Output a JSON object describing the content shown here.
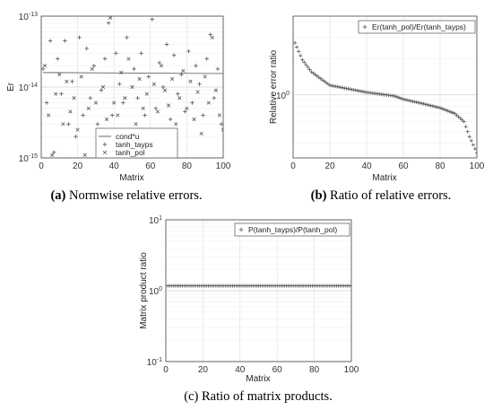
{
  "chart_data": [
    {
      "id": "a",
      "type": "scatter",
      "caption_letter": "(a)",
      "caption_text": " Normwise relative errors.",
      "xlabel": "Matrix",
      "ylabel": "Er",
      "xlim": [
        0,
        100
      ],
      "ylim": [
        1e-15,
        1e-13
      ],
      "yscale": "log",
      "x_ticks": [
        "0",
        "20",
        "40",
        "60",
        "80",
        "100"
      ],
      "y_ticks": [
        "10",
        "10",
        "10"
      ],
      "y_tick_exponents": [
        "-15",
        "-14",
        "-13"
      ],
      "grid": true,
      "legend": "bottom-center",
      "series": [
        {
          "name": "cond*u",
          "style": "line",
          "start": [
            1,
            1.6e-14
          ],
          "end": [
            100,
            1.55e-14
          ]
        },
        {
          "name": "tanh_tayps",
          "marker": "+",
          "x": [
            1,
            3,
            5,
            7,
            9,
            11,
            13,
            15,
            17,
            19,
            21,
            23,
            25,
            27,
            29,
            31,
            33,
            35,
            37,
            39,
            41,
            43,
            45,
            47,
            49,
            51,
            53,
            55,
            57,
            59,
            61,
            63,
            65,
            67,
            69,
            71,
            73,
            75,
            77,
            79,
            81,
            83,
            85,
            87,
            89,
            91,
            93,
            95,
            97,
            99
          ],
          "y": [
            1.8e-14,
            6e-15,
            4.5e-14,
            1.2e-15,
            2.5e-14,
            8e-15,
            4.5e-14,
            3e-15,
            1.2e-14,
            2e-15,
            5e-14,
            4e-15,
            3.5e-14,
            7e-15,
            2e-14,
            3e-15,
            9e-15,
            2.5e-14,
            8e-14,
            4e-15,
            3e-14,
            1.1e-14,
            6e-15,
            5e-14,
            2.2e-15,
            1.8e-14,
            7e-15,
            3e-14,
            4e-15,
            1.4e-14,
            9e-14,
            5e-15,
            2.2e-14,
            1e-14,
            4e-14,
            3.5e-15,
            2.8e-14,
            8e-15,
            1.5e-14,
            4.5e-15,
            3.2e-14,
            6e-15,
            2e-14,
            1.1e-14,
            4e-15,
            2.5e-14,
            5.5e-14,
            7e-15,
            1.8e-14,
            3e-15
          ]
        },
        {
          "name": "tanh_pol",
          "marker": "x",
          "x": [
            2,
            4,
            6,
            8,
            10,
            12,
            14,
            16,
            18,
            20,
            22,
            24,
            26,
            28,
            30,
            32,
            34,
            36,
            38,
            40,
            42,
            44,
            46,
            48,
            50,
            52,
            54,
            56,
            58,
            60,
            62,
            64,
            66,
            68,
            70,
            72,
            74,
            76,
            78,
            80,
            82,
            84,
            86,
            88,
            90,
            92,
            94,
            96,
            98,
            100
          ],
          "y": [
            2e-14,
            4e-15,
            1.1e-15,
            8e-15,
            1.5e-14,
            3e-15,
            1.2e-14,
            4.5e-15,
            7e-15,
            2.5e-15,
            1.4e-14,
            1.1e-15,
            5e-15,
            1.8e-14,
            6e-15,
            2.2e-15,
            1e-14,
            3.5e-15,
            9.5e-14,
            6e-15,
            4e-15,
            1.6e-14,
            7e-15,
            2.5e-14,
            1e-14,
            3e-15,
            1.3e-14,
            5e-15,
            8e-15,
            2e-15,
            1.1e-14,
            4.5e-15,
            2e-14,
            9e-15,
            5.5e-15,
            1.3e-14,
            3e-15,
            7e-15,
            1.7e-14,
            5e-15,
            1.2e-14,
            3.5e-15,
            8.5e-15,
            2.2e-15,
            1.4e-14,
            6e-15,
            5e-14,
            9e-15,
            4e-15,
            2.5e-15
          ]
        }
      ]
    },
    {
      "id": "b",
      "type": "scatter",
      "caption_letter": "(b)",
      "caption_text": " Ratio of relative errors.",
      "xlabel": "Matrix",
      "ylabel": "Relative error ratio",
      "xlim": [
        0,
        100
      ],
      "yscale": "log",
      "x_ticks": [
        "0",
        "20",
        "40",
        "60",
        "80",
        "100"
      ],
      "y_ticks": [
        "10"
      ],
      "y_tick_exponents": [
        "0"
      ],
      "grid": true,
      "legend": "top-right",
      "series": [
        {
          "name": "Er(tanh_pol)/Er(tanh_tayps)",
          "marker": "+",
          "x_start": 1,
          "x_end": 100,
          "profile": [
            [
              1,
              2.7
            ],
            [
              5,
              1.95
            ],
            [
              10,
              1.55
            ],
            [
              20,
              1.2
            ],
            [
              40,
              1.05
            ],
            [
              55,
              0.98
            ],
            [
              60,
              0.92
            ],
            [
              70,
              0.85
            ],
            [
              80,
              0.78
            ],
            [
              88,
              0.7
            ],
            [
              93,
              0.6
            ],
            [
              96,
              0.45
            ],
            [
              100,
              0.33
            ]
          ]
        }
      ]
    },
    {
      "id": "c",
      "type": "scatter",
      "caption_letter": "",
      "caption_text": "(c) Ratio of matrix products.",
      "xlabel": "Matrix",
      "ylabel": "Matrix product ratio",
      "xlim": [
        0,
        100
      ],
      "ylim": [
        0.1,
        10
      ],
      "yscale": "log",
      "x_ticks": [
        "0",
        "20",
        "40",
        "60",
        "80",
        "100"
      ],
      "y_ticks": [
        "10",
        "10",
        "10"
      ],
      "y_tick_exponents": [
        "-1",
        "0",
        "1"
      ],
      "grid": true,
      "legend": "top-right",
      "series": [
        {
          "name": "P(tanh_tayps)/P(tanh_pol)",
          "marker": "+",
          "x_start": 1,
          "x_end": 100,
          "value": 1.17
        }
      ]
    }
  ]
}
